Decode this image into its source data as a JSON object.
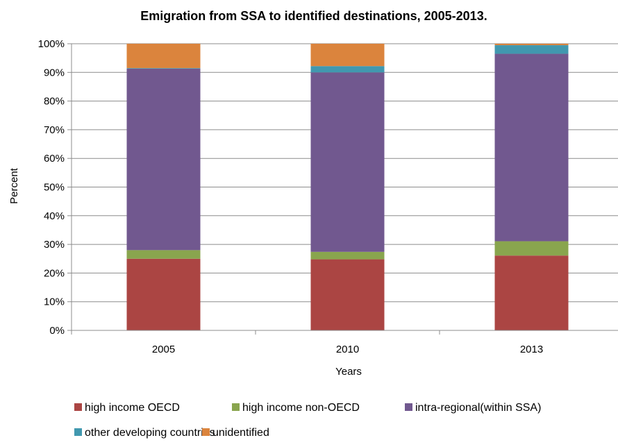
{
  "chart_data": {
    "type": "bar",
    "stacked": true,
    "title": "Emigration from SSA to identified destinations, 2005-2013.",
    "xlabel": "Years",
    "ylabel": "Percent",
    "ylim": [
      0,
      100
    ],
    "y_ticks": [
      "0%",
      "10%",
      "20%",
      "30%",
      "40%",
      "50%",
      "60%",
      "70%",
      "80%",
      "90%",
      "100%"
    ],
    "grid": true,
    "legend_position": "bottom",
    "categories": [
      "2005",
      "2010",
      "2013"
    ],
    "series": [
      {
        "name": "high income OECD",
        "color": "#ab4543",
        "values": [
          25.0,
          24.8,
          26.1
        ]
      },
      {
        "name": "high income non-OECD",
        "color": "#89a54e",
        "values": [
          3.0,
          2.6,
          5.0
        ]
      },
      {
        "name": "intra-regional(within SSA)",
        "color": "#71588f",
        "values": [
          63.3,
          62.6,
          65.4
        ]
      },
      {
        "name": "other developing countries",
        "color": "#4198af",
        "values": [
          0.2,
          2.2,
          3.0
        ]
      },
      {
        "name": "unidentified",
        "color": "#db843d",
        "values": [
          8.5,
          7.8,
          0.5
        ]
      }
    ]
  }
}
